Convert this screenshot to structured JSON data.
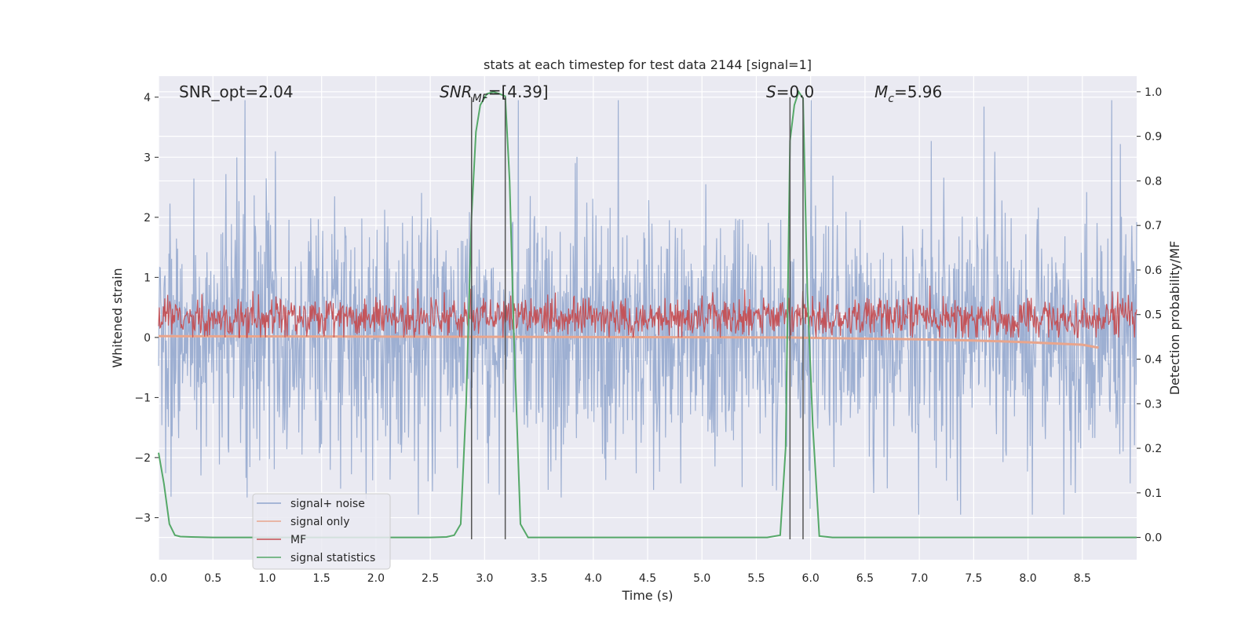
{
  "chart_data": {
    "type": "line",
    "title": "stats at each timestep for test data 2144 [signal=1]",
    "xlabel": "Time (s)",
    "ylabel": "Whitened strain",
    "y2label": "Detection probability/MF",
    "xlim": [
      0.0,
      9.0
    ],
    "ylim": [
      -3.7,
      4.35
    ],
    "y2lim": [
      -0.05,
      1.035
    ],
    "xticks": [
      "0.0",
      "0.5",
      "1.0",
      "1.5",
      "2.0",
      "2.5",
      "3.0",
      "3.5",
      "4.0",
      "4.5",
      "5.0",
      "5.5",
      "6.0",
      "6.5",
      "7.0",
      "7.5",
      "8.0",
      "8.5"
    ],
    "yticks": [
      "4",
      "3",
      "2",
      "1",
      "0",
      "−1",
      "−2",
      "−3"
    ],
    "y2ticks": [
      "1.0",
      "0.9",
      "0.8",
      "0.7",
      "0.6",
      "0.5",
      "0.4",
      "0.3",
      "0.2",
      "0.1",
      "0.0"
    ],
    "grid": true,
    "legend_position": "lower-left",
    "annotations": {
      "snr_opt": "SNR_opt=2.04",
      "snr_mf_label": "SNR",
      "snr_mf_sub": "MF",
      "snr_mf_value": "=[4.39]",
      "s_label": "S",
      "s_value": "=0.0",
      "mc_label": "M",
      "mc_sub": "c",
      "mc_value": "=5.96"
    },
    "vertical_lines_x": [
      2.88,
      3.19,
      5.81,
      5.93
    ],
    "series": [
      {
        "name": "signal+ noise",
        "color": "#8fa5cd",
        "y_range_approx": [
          -3.0,
          4.0
        ],
        "axis": "left"
      },
      {
        "name": "signal only",
        "color": "#e8a58d",
        "axis": "left",
        "x": [
          0.0,
          5.8,
          6.5,
          7.0,
          7.5,
          8.0,
          8.5,
          8.65
        ],
        "y": [
          0.02,
          0.0,
          -0.02,
          -0.03,
          -0.05,
          -0.08,
          -0.12,
          -0.17
        ]
      },
      {
        "name": "MF",
        "color": "#c44e52",
        "y_range_approx": [
          0.0,
          1.0
        ],
        "axis": "left"
      },
      {
        "name": "signal statistics",
        "color": "#55a868",
        "axis": "right",
        "x": [
          0.0,
          0.05,
          0.1,
          0.15,
          0.2,
          0.3,
          0.5,
          1.0,
          1.5,
          2.0,
          2.5,
          2.65,
          2.72,
          2.78,
          2.83,
          2.88,
          2.92,
          2.96,
          3.02,
          3.08,
          3.14,
          3.19,
          3.23,
          3.27,
          3.33,
          3.4,
          3.5,
          4.0,
          5.0,
          5.6,
          5.72,
          5.77,
          5.81,
          5.85,
          5.89,
          5.93,
          5.97,
          6.02,
          6.08,
          6.2,
          7.0,
          8.0,
          9.0
        ],
        "y": [
          0.19,
          0.12,
          0.03,
          0.005,
          0.002,
          0.001,
          0.0,
          0.0,
          0.0,
          0.0,
          0.0,
          0.001,
          0.005,
          0.03,
          0.3,
          0.72,
          0.91,
          0.97,
          0.995,
          1.0,
          0.995,
          0.99,
          0.8,
          0.45,
          0.03,
          0.0,
          0.0,
          0.0,
          0.0,
          0.0,
          0.005,
          0.2,
          0.89,
          0.97,
          1.0,
          0.985,
          0.55,
          0.25,
          0.003,
          0.0,
          0.0,
          0.0,
          0.0
        ]
      }
    ]
  }
}
